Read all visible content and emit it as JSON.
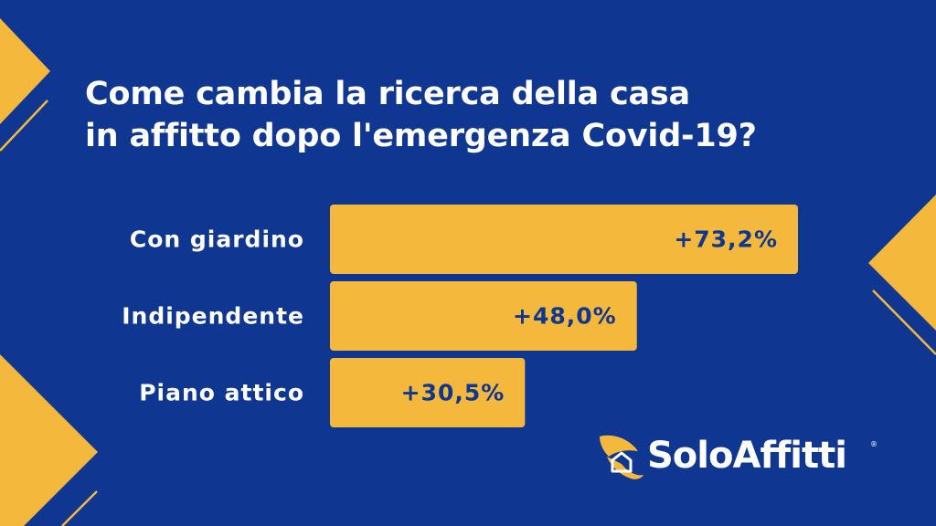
{
  "title": {
    "line1": "Come cambia la ricerca della casa",
    "line2": "in affitto dopo l'emergenza Covid-19?"
  },
  "colors": {
    "background": "#0f3690",
    "accent": "#f4b93c",
    "bar_label": "#0f3690",
    "text": "#ffffff"
  },
  "chart_data": {
    "type": "bar",
    "orientation": "horizontal",
    "categories": [
      "Con giardino",
      "Indipendente",
      "Piano attico"
    ],
    "values": [
      73.2,
      48.0,
      30.5
    ],
    "data_labels": [
      "+73,2%",
      "+48,0%",
      "+30,5%"
    ],
    "title": "Come cambia la ricerca della casa in affitto dopo l'emergenza Covid-19?",
    "xlabel": "",
    "ylabel": "",
    "grid": false,
    "legend": "none"
  },
  "logo": {
    "text": "SoloAffitti",
    "registered_mark": "®",
    "icon": "wing-house-icon"
  }
}
